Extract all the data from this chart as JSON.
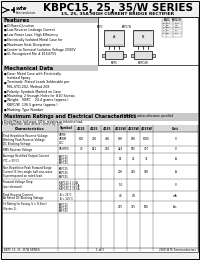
{
  "title_main": "KBPC15, 25, 35/W SERIES",
  "title_sub": "15, 25, 35A HIGH CURRENT BRIDGE RECTIFIER",
  "bg_color": "#f0f0f0",
  "header_bg": "#f0f0f0",
  "section_bg": "#d4d4d4",
  "features_title": "Features",
  "features": [
    "Diffused Junction",
    "Low Reverse Leakage Current",
    "Low Power Loss, High Efficiency",
    "Electrically Isolated Metal Case for",
    "Maximum Heat Dissipation",
    "Center to Terminal Isolation Voltage 2500V",
    "UL Recognized File # E154755"
  ],
  "mech_title": "Mechanical Data",
  "mech_data": [
    "Case: Metal Case with Electrically",
    "  Isolated Epoxy",
    "Terminals: Plated Leads Solderable per",
    "  MIL-STD-202, Method 208",
    "Polarity: Symbols Marked on Case",
    "Mounting: 2 through Holes for #10 Screws",
    "Weight:   KBPC    24.4 grams (approx.)",
    "          KBPC/W  136.5 grams (approx.)",
    "Marking: Type Number"
  ],
  "table_title": "Maximum Ratings and Electrical Characteristics",
  "table_note1": "Single Phase, half wave, 60Hz, resistive or inductive load,",
  "table_note2": "For capacitive load, derate current by 20%",
  "col_headers": [
    "Characteristics",
    "Symbol",
    "4015",
    "4025",
    "4035",
    "4015W",
    "4025W",
    "4035W",
    "Unit"
  ],
  "table_rows": [
    {
      "char": [
        "Peak Repetitive Reverse Voltage",
        "Working Peak Reverse Voltage",
        "DC Blocking Voltage"
      ],
      "sym": [
        "VRRM",
        "VRWM",
        "VDC"
      ],
      "vals": [
        "100",
        "200",
        "400",
        "600",
        "800",
        "1000",
        "V"
      ],
      "nrows": 3
    },
    {
      "char": [
        "RMS Reverse Voltage"
      ],
      "sym": [
        "VR(RMS)"
      ],
      "vals": [
        "70",
        "141",
        "282",
        "424",
        "565",
        "707",
        "V"
      ],
      "nrows": 1
    },
    {
      "char": [
        "Average Rectified Output Current",
        "(TC = 55°C)"
      ],
      "sym": [
        "KBPC15",
        "KBPC25",
        "KBPC35"
      ],
      "vals": [
        "",
        "",
        "",
        "15",
        "25",
        "35",
        "A"
      ],
      "nrows": 2
    },
    {
      "char": [
        "Non-Repetitive Peak Forward Surge",
        "Current 8.3ms single half sine-wave",
        "Superimposed on rated load"
      ],
      "sym": [
        "KBPC15",
        "KBPC25",
        "KBPC35"
      ],
      "vals": [
        "",
        "",
        "",
        "200",
        "250",
        "300",
        "A"
      ],
      "nrows": 3
    },
    {
      "char": [
        "Forward Voltage Drop",
        "(per element)"
      ],
      "sym": [
        "KBPC15-1 1.5A",
        "KBPC25-1 17.5A",
        "KBPC35-1 17.5A"
      ],
      "vals": [
        "",
        "",
        "",
        "1.0",
        "",
        "",
        "V"
      ],
      "nrows": 2
    },
    {
      "char": [
        "Peak Reverse Current",
        "At Rated DC Blocking Voltage"
      ],
      "sym": [
        "Ta = 25°C",
        "Ta = 125°C"
      ],
      "vals": [
        "",
        "",
        "",
        "40",
        "0.5",
        "",
        "mA"
      ],
      "nrows": 2
    },
    {
      "char": [
        "I²t Rating for Fusing (t < 8.3ms)",
        "(Series 1)"
      ],
      "sym": [
        "KBPC15",
        "KBPC25",
        "KBPC35"
      ],
      "vals": [
        "",
        "",
        "",
        "275",
        "375",
        "500",
        "A²s"
      ],
      "nrows": 2
    }
  ],
  "footer_left": "KBPC 15, 25, 35/W SERIES",
  "footer_mid": "1 of 3",
  "footer_right": "2008 WTE Semiconductors"
}
